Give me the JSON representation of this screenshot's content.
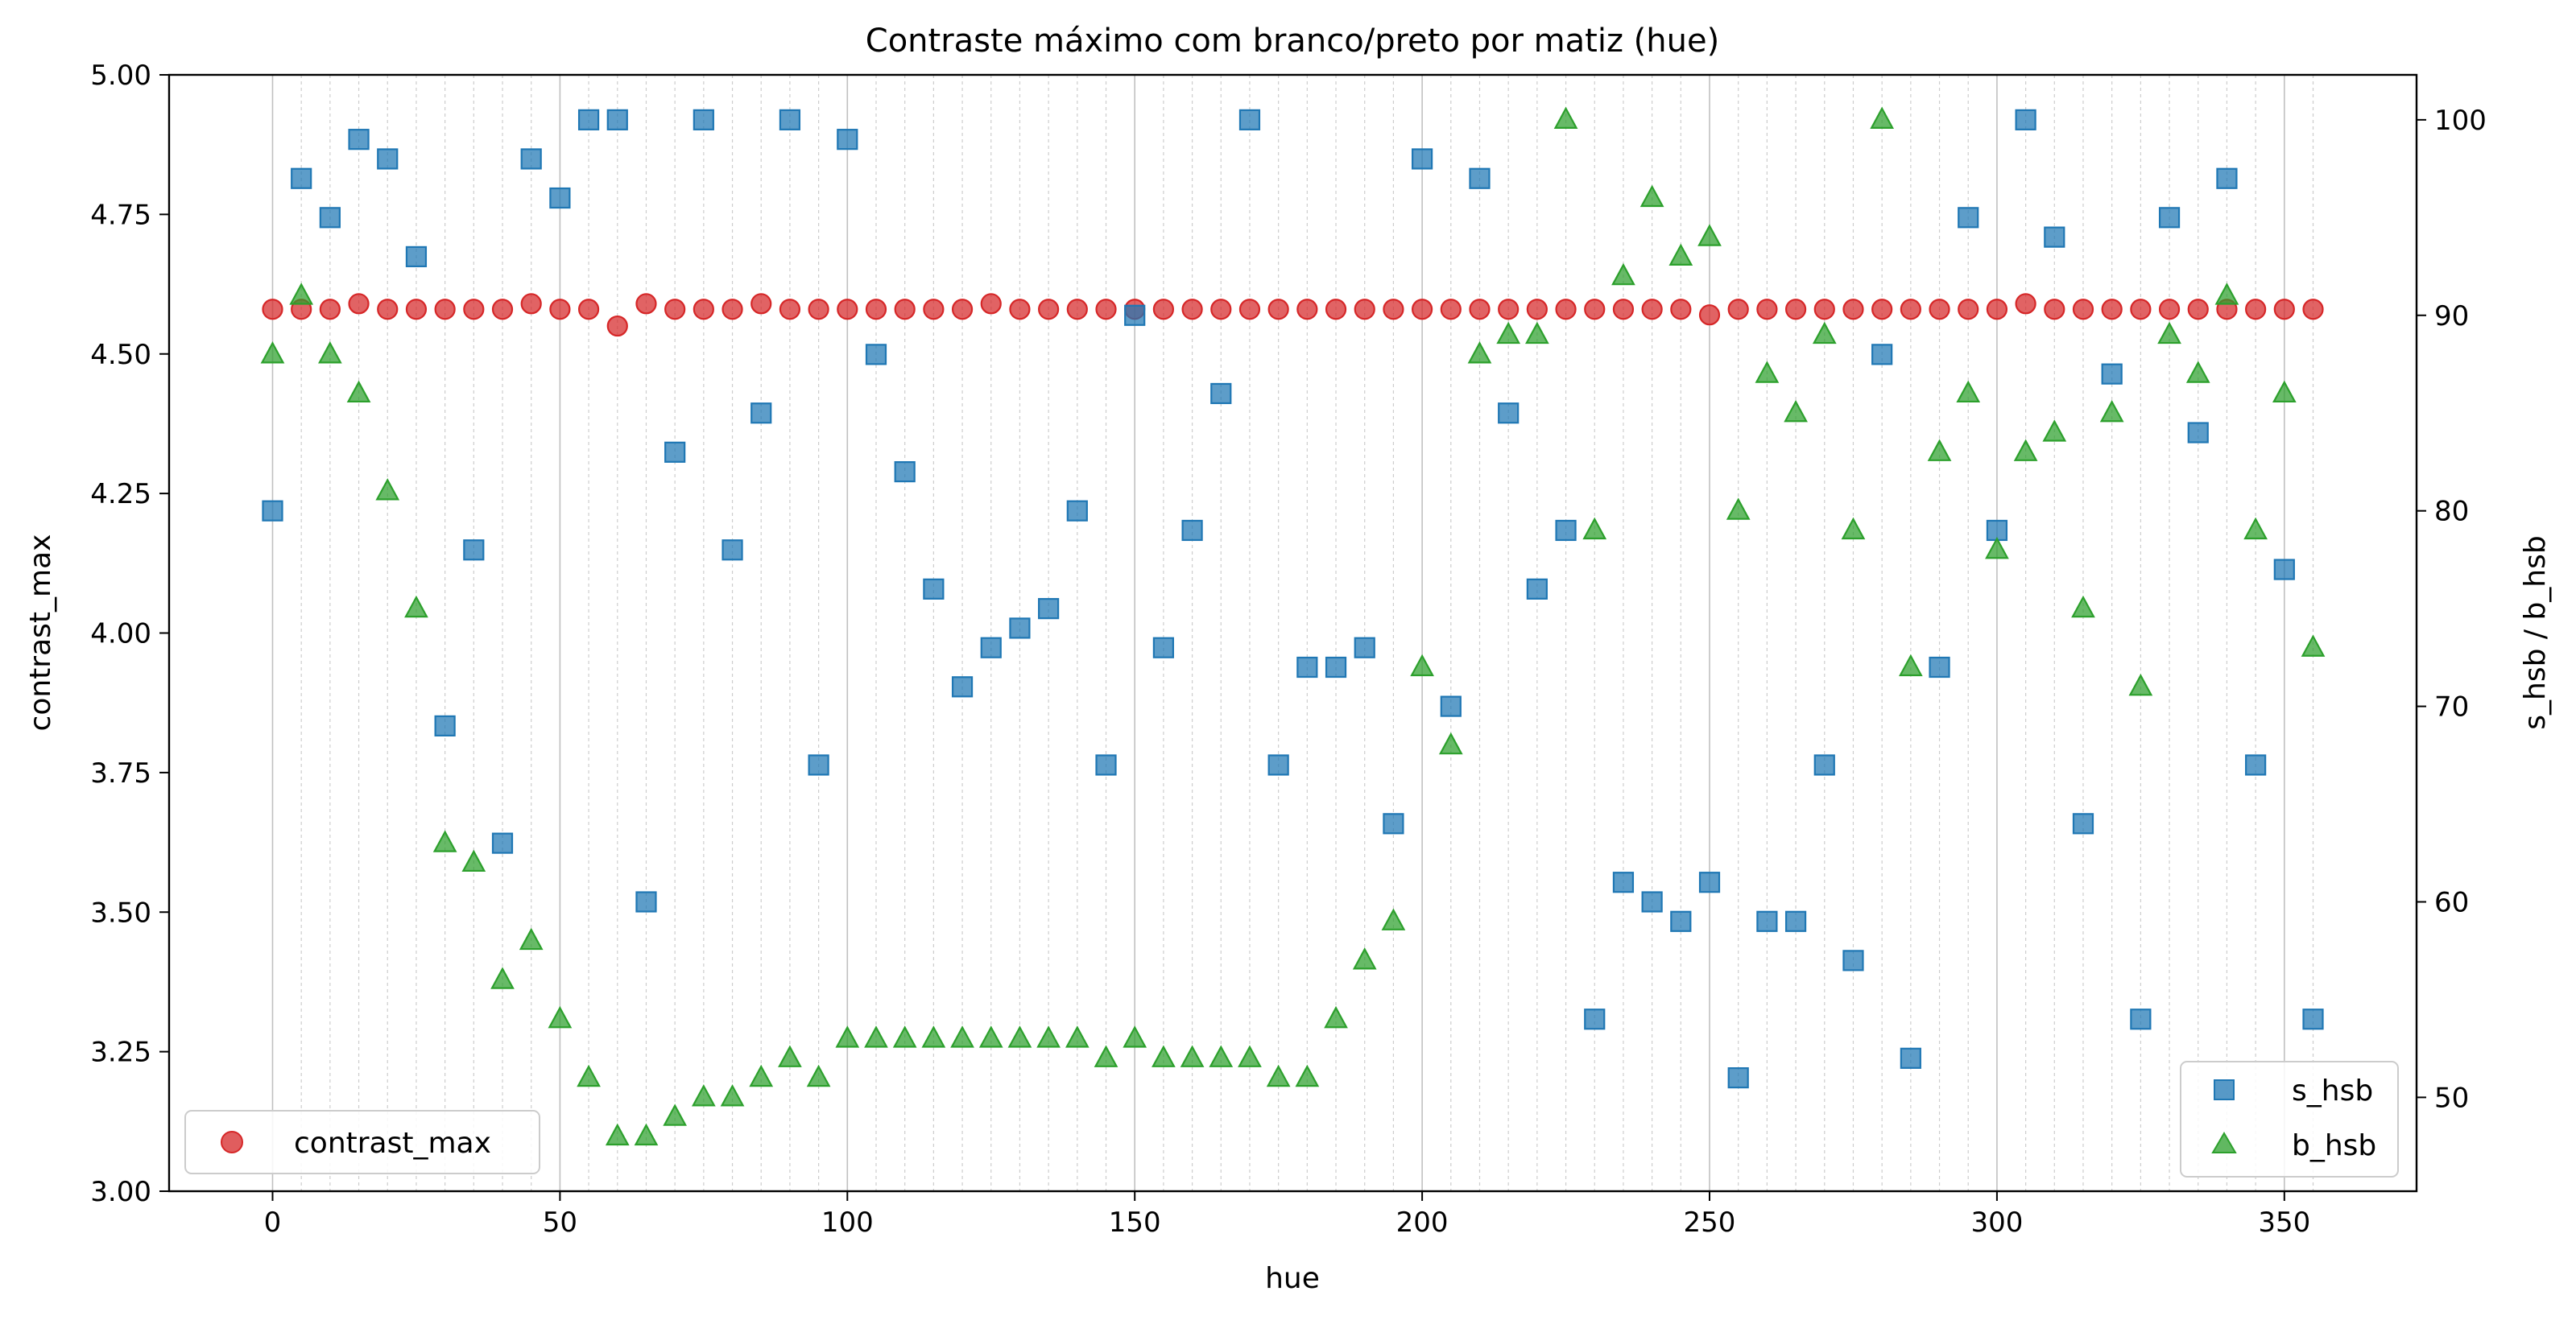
{
  "chart_data": {
    "type": "scatter",
    "title": "Contraste máximo com branco/preto por matiz (hue)",
    "xlabel": "hue",
    "ylabel_left": "contrast_max",
    "ylabel_right": "s_hsb / b_hsb",
    "xlim": [
      -18,
      373
    ],
    "ylim_left": [
      3.0,
      5.0
    ],
    "ylim_right": [
      45.2,
      102.3
    ],
    "x_ticks": [
      0,
      50,
      100,
      150,
      200,
      250,
      300,
      350
    ],
    "y_left_ticks": [
      "3.00",
      "3.25",
      "3.50",
      "3.75",
      "4.00",
      "4.25",
      "4.50",
      "4.75",
      "5.00"
    ],
    "y_right_ticks": [
      50,
      60,
      70,
      80,
      90,
      100
    ],
    "grid": "vertical",
    "x": [
      0,
      5,
      10,
      15,
      20,
      25,
      30,
      35,
      40,
      45,
      50,
      55,
      60,
      65,
      70,
      75,
      80,
      85,
      90,
      95,
      100,
      105,
      110,
      115,
      120,
      125,
      130,
      135,
      140,
      145,
      150,
      155,
      160,
      165,
      170,
      175,
      180,
      185,
      190,
      195,
      200,
      205,
      210,
      215,
      220,
      225,
      230,
      235,
      240,
      245,
      250,
      255,
      260,
      265,
      270,
      275,
      280,
      285,
      290,
      295,
      300,
      305,
      310,
      315,
      320,
      325,
      330,
      335,
      340,
      345,
      350,
      355
    ],
    "series": [
      {
        "name": "contrast_max",
        "axis": "left",
        "marker": "circle",
        "color": "#d62728",
        "legend": "lower-left",
        "values": [
          4.58,
          4.58,
          4.58,
          4.59,
          4.58,
          4.58,
          4.58,
          4.58,
          4.58,
          4.59,
          4.58,
          4.58,
          4.55,
          4.59,
          4.58,
          4.58,
          4.58,
          4.59,
          4.58,
          4.58,
          4.58,
          4.58,
          4.58,
          4.58,
          4.58,
          4.59,
          4.58,
          4.58,
          4.58,
          4.58,
          4.58,
          4.58,
          4.58,
          4.58,
          4.58,
          4.58,
          4.58,
          4.58,
          4.58,
          4.58,
          4.58,
          4.58,
          4.58,
          4.58,
          4.58,
          4.58,
          4.58,
          4.58,
          4.58,
          4.58,
          4.57,
          4.58,
          4.58,
          4.58,
          4.58,
          4.58,
          4.58,
          4.58,
          4.58,
          4.58,
          4.58,
          4.59,
          4.58,
          4.58,
          4.58,
          4.58,
          4.58,
          4.58,
          4.58,
          4.58,
          4.58,
          4.58
        ]
      },
      {
        "name": "s_hsb",
        "axis": "right",
        "marker": "square",
        "color": "#1f77b4",
        "legend": "lower-right",
        "values": [
          80,
          97,
          95,
          99,
          98,
          93,
          69,
          78,
          63,
          98,
          96,
          100,
          100,
          60,
          83,
          100,
          78,
          85,
          100,
          67,
          99,
          88,
          82,
          76,
          71,
          73,
          74,
          75,
          80,
          67,
          90,
          73,
          79,
          86,
          100,
          67,
          72,
          72,
          73,
          64,
          98,
          70,
          97,
          85,
          76,
          79,
          54,
          61,
          60,
          59,
          61,
          51,
          59,
          59,
          67,
          57,
          88,
          52,
          72,
          95,
          79,
          100,
          94,
          64,
          87,
          54,
          95,
          84,
          97,
          67,
          77,
          54
        ]
      },
      {
        "name": "b_hsb",
        "axis": "right",
        "marker": "triangle",
        "color": "#2ca02c",
        "legend": "lower-right",
        "values": [
          88,
          91,
          88,
          86,
          81,
          75,
          63,
          62,
          56,
          58,
          54,
          51,
          48,
          48,
          49,
          50,
          50,
          51,
          52,
          51,
          53,
          53,
          53,
          53,
          53,
          53,
          53,
          53,
          53,
          52,
          53,
          52,
          52,
          52,
          52,
          51,
          51,
          54,
          57,
          59,
          72,
          68,
          88,
          89,
          89,
          100,
          79,
          92,
          96,
          93,
          94,
          80,
          87,
          85,
          89,
          79,
          100,
          72,
          83,
          86,
          78,
          83,
          84,
          75,
          85,
          71,
          89,
          87,
          91,
          79,
          86,
          73
        ]
      }
    ]
  }
}
